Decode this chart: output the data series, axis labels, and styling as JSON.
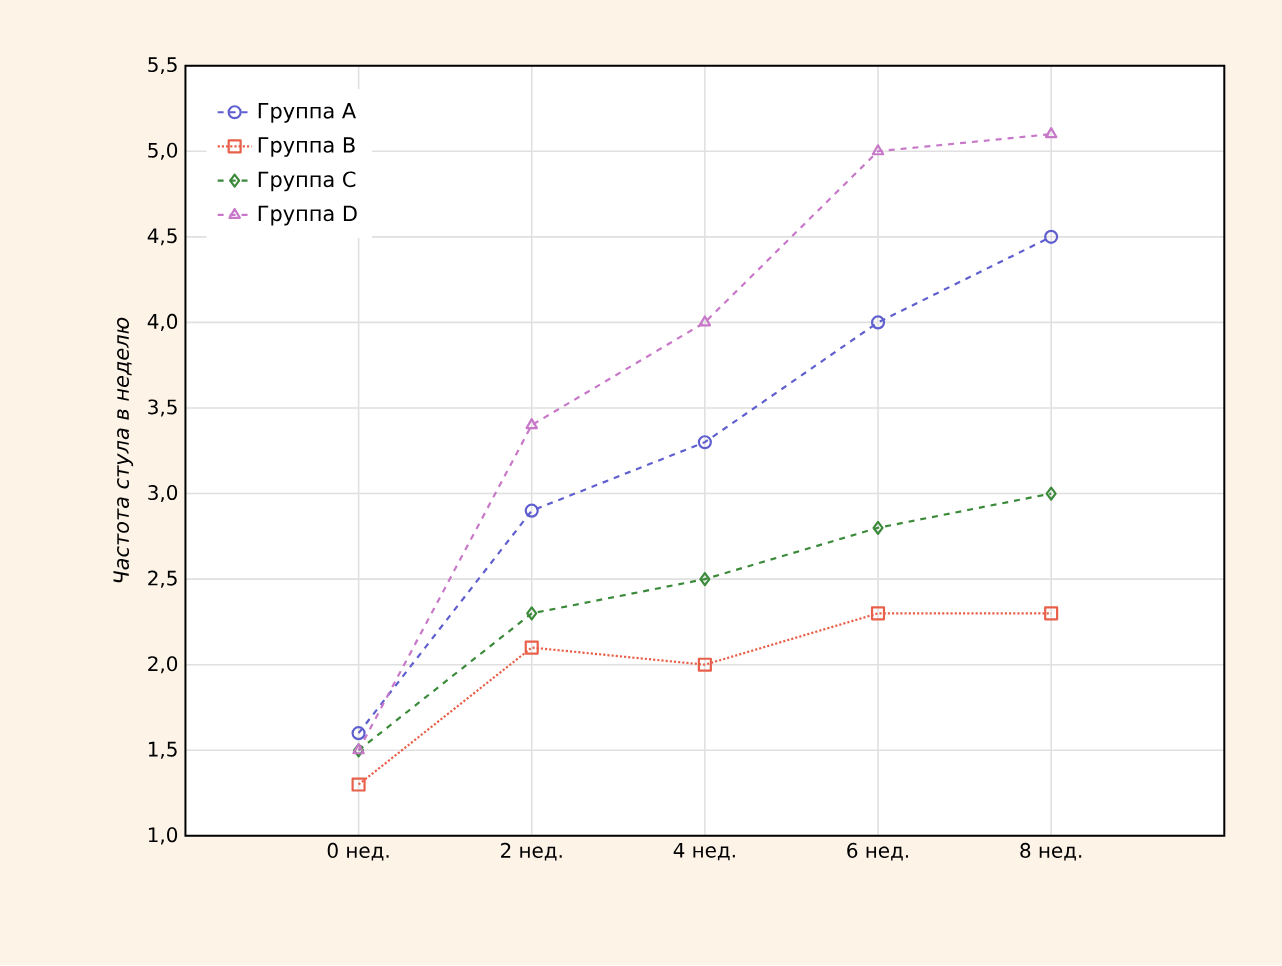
{
  "chart_data": {
    "type": "line",
    "ylabel": "Частота стула в неделю",
    "categories": [
      "0 нед.",
      "2 нед.",
      "4 нед.",
      "6 нед.",
      "8 нед."
    ],
    "series": [
      {
        "name": "Группа A",
        "color": "#5f5fcf",
        "marker": "circle",
        "line_style": "dashed",
        "values": [
          1.6,
          2.9,
          3.3,
          4.0,
          4.5
        ]
      },
      {
        "name": "Группа B",
        "color": "#e8604a",
        "marker": "square",
        "line_style": "dotted",
        "values": [
          1.3,
          2.1,
          2.0,
          2.3,
          2.3
        ]
      },
      {
        "name": "Группа C",
        "color": "#3a8a3a",
        "marker": "diamond",
        "line_style": "dashed",
        "values": [
          1.5,
          2.3,
          2.5,
          2.8,
          3.0
        ]
      },
      {
        "name": "Группа D",
        "color": "#c878c8",
        "marker": "triangle",
        "line_style": "dashed",
        "values": [
          1.5,
          3.4,
          4.0,
          5.0,
          5.1
        ]
      }
    ],
    "ylim": [
      1.0,
      5.5
    ],
    "yticks": [
      {
        "value": 1.0,
        "label": "1,0"
      },
      {
        "value": 1.5,
        "label": "1,5"
      },
      {
        "value": 2.0,
        "label": "2,0"
      },
      {
        "value": 2.5,
        "label": "2,5"
      },
      {
        "value": 3.0,
        "label": "3,0"
      },
      {
        "value": 3.5,
        "label": "3,5"
      },
      {
        "value": 4.0,
        "label": "4,0"
      },
      {
        "value": 4.5,
        "label": "4,5"
      },
      {
        "value": 5.0,
        "label": "5,0"
      },
      {
        "value": 5.5,
        "label": "5,5"
      }
    ],
    "grid": true,
    "legend": "top left"
  }
}
